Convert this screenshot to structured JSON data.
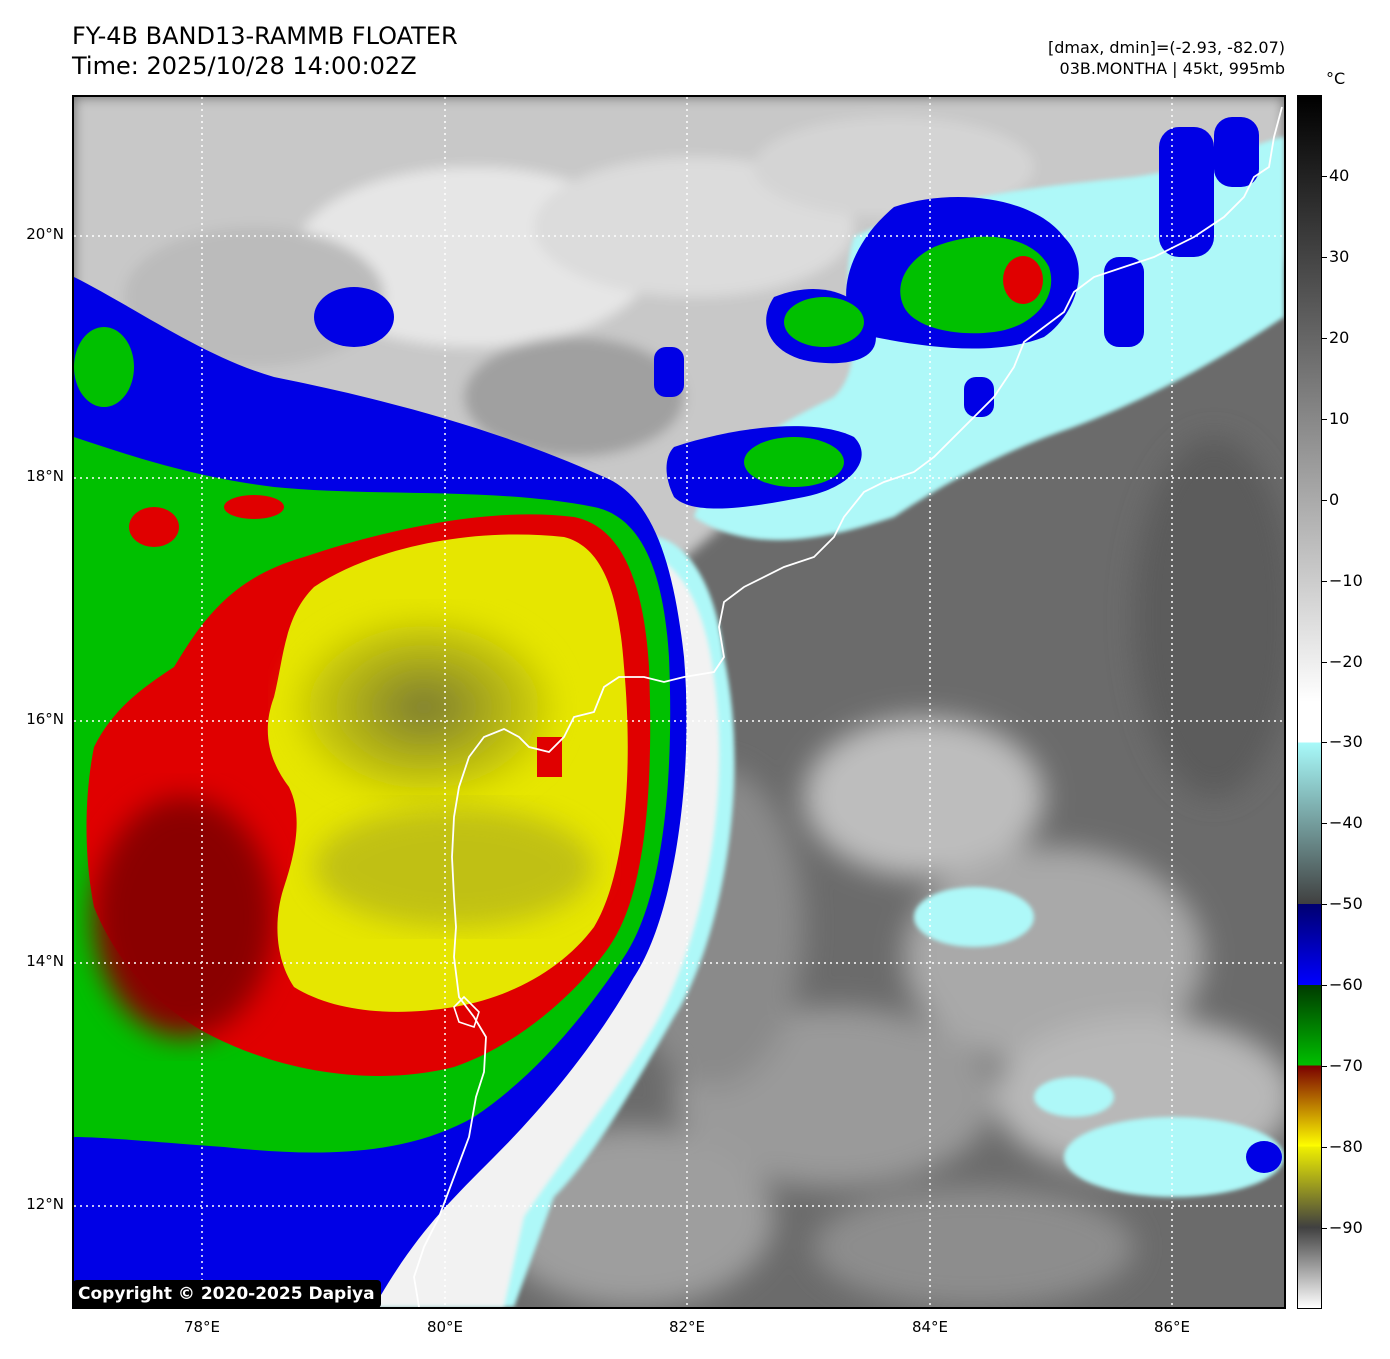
{
  "header": {
    "title_line1": "FY-4B BAND13-RAMMB FLOATER",
    "title_line2": "Time: 2025/10/28 14:00:02Z",
    "info_line1": "[dmax, dmin]=(-2.93, -82.07)",
    "info_line2": "03B.MONTHA | 45kt, 995mb"
  },
  "map": {
    "lat_labels": [
      "20°N",
      "18°N",
      "16°N",
      "14°N",
      "12°N"
    ],
    "lon_labels": [
      "78°E",
      "80°E",
      "82°E",
      "84°E",
      "86°E"
    ],
    "copyright": "Copyright © 2020-2025 Dapiya"
  },
  "colorbar": {
    "unit": "°C",
    "tick_labels": [
      "40",
      "30",
      "20",
      "10",
      "0",
      "−10",
      "−20",
      "−30",
      "−40",
      "−50",
      "−60",
      "−70",
      "−80",
      "−90"
    ],
    "range": [
      -100,
      50
    ],
    "color_bands": [
      {
        "from": -100,
        "to": -90,
        "start": "#ffffff",
        "end": "#404040"
      },
      {
        "from": -90,
        "to": -80,
        "start": "#404040",
        "end": "#f0f000"
      },
      {
        "from": -80,
        "to": -70,
        "start": "#ffff00",
        "end": "#7a0000"
      },
      {
        "from": -70,
        "to": -60,
        "start": "#00c000",
        "end": "#003a00"
      },
      {
        "from": -60,
        "to": -50,
        "start": "#0000ff",
        "end": "#000070"
      },
      {
        "from": -50,
        "to": -30,
        "start": "#404040",
        "end": "#a8fafa"
      },
      {
        "from": -30,
        "to": -25,
        "start": "#ffffff",
        "end": "#ffffff"
      },
      {
        "from": -25,
        "to": 50,
        "start": "#ffffff",
        "end": "#000000"
      }
    ]
  },
  "colors": {
    "cold_cloud_top_yellow": "#e6e600",
    "red": "#e00000",
    "green": "#00c000",
    "blue": "#0000e6",
    "cyan": "#aef8f8",
    "coastline": "#ffffff"
  }
}
